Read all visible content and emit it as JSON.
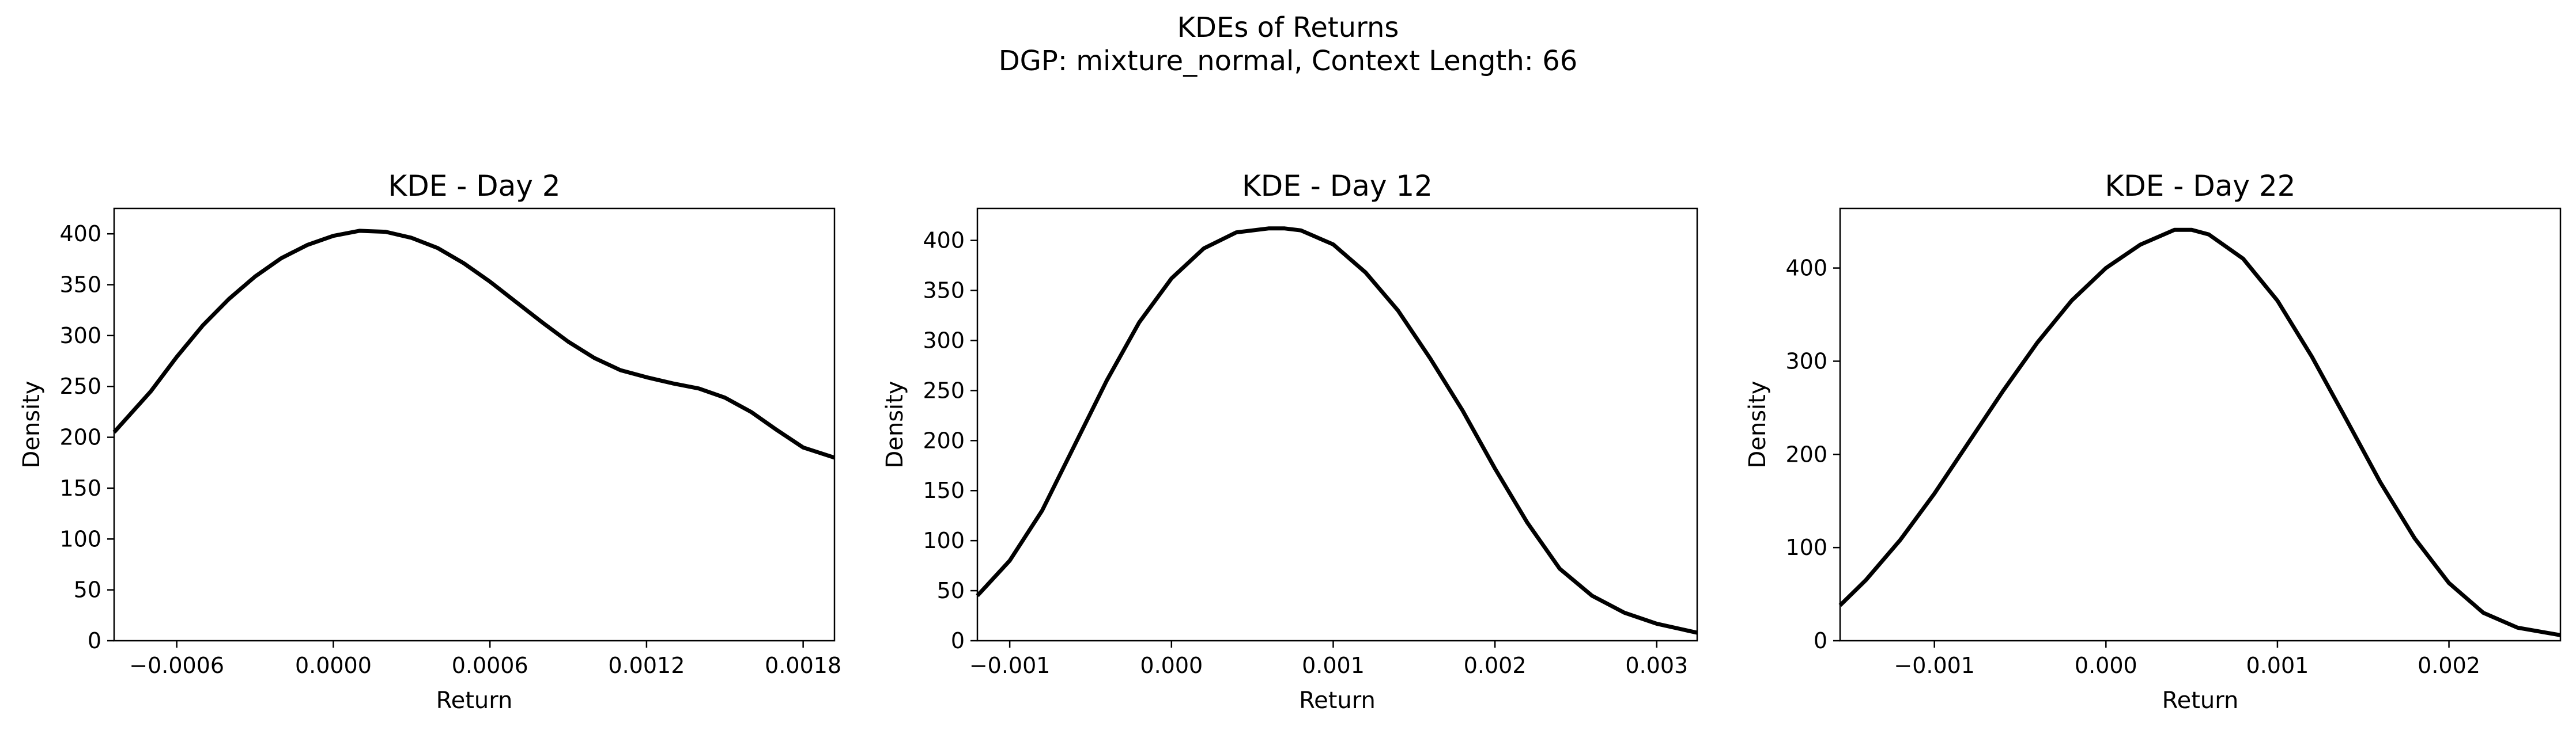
{
  "figure": {
    "title_line1": "KDEs of Returns",
    "title_line2": "DGP: mixture_normal, Context Length: 66"
  },
  "chart_data": [
    {
      "type": "line",
      "title": "KDE - Day 2",
      "xlabel": "Return",
      "ylabel": "Density",
      "xlim": [
        -0.00084,
        0.00192
      ],
      "ylim": [
        0,
        425
      ],
      "xticks": [
        -0.0006,
        0.0,
        0.0006,
        0.0012,
        0.0018
      ],
      "xtick_labels": [
        "−0.0006",
        "0.0000",
        "0.0006",
        "0.0012",
        "0.0018"
      ],
      "yticks": [
        0,
        50,
        100,
        150,
        200,
        250,
        300,
        350,
        400
      ],
      "ytick_labels": [
        "0",
        "50",
        "100",
        "150",
        "200",
        "250",
        "300",
        "350",
        "400"
      ],
      "grid": false,
      "line_color": "#000000",
      "x": [
        -0.00084,
        -0.0007,
        -0.0006,
        -0.0005,
        -0.0004,
        -0.0003,
        -0.0002,
        -0.0001,
        0.0,
        0.0001,
        0.0002,
        0.0003,
        0.0004,
        0.0005,
        0.0006,
        0.0007,
        0.0008,
        0.0009,
        0.001,
        0.0011,
        0.0012,
        0.0013,
        0.0014,
        0.0015,
        0.0016,
        0.0017,
        0.0018,
        0.00192
      ],
      "y": [
        205,
        245,
        279,
        310,
        336,
        358,
        376,
        389,
        398,
        403,
        402,
        396,
        386,
        371,
        353,
        333,
        313,
        294,
        278,
        266,
        259,
        253,
        248,
        239,
        225,
        207,
        190,
        180
      ]
    },
    {
      "type": "line",
      "title": "KDE - Day 12",
      "xlabel": "Return",
      "ylabel": "Density",
      "xlim": [
        -0.0012,
        0.00325
      ],
      "ylim": [
        0,
        432
      ],
      "xticks": [
        -0.001,
        0.0,
        0.001,
        0.002,
        0.003
      ],
      "xtick_labels": [
        "−0.001",
        "0.000",
        "0.001",
        "0.002",
        "0.003"
      ],
      "yticks": [
        0,
        50,
        100,
        150,
        200,
        250,
        300,
        350,
        400
      ],
      "ytick_labels": [
        "0",
        "50",
        "100",
        "150",
        "200",
        "250",
        "300",
        "350",
        "400"
      ],
      "grid": false,
      "line_color": "#000000",
      "x": [
        -0.0012,
        -0.001,
        -0.0008,
        -0.0006,
        -0.0004,
        -0.0002,
        0.0,
        0.0002,
        0.0004,
        0.0006,
        0.0007,
        0.0008,
        0.001,
        0.0012,
        0.0014,
        0.0016,
        0.0018,
        0.002,
        0.0022,
        0.0024,
        0.0026,
        0.0028,
        0.003,
        0.00325
      ],
      "y": [
        45,
        80,
        130,
        195,
        260,
        318,
        362,
        392,
        408,
        412,
        412,
        410,
        396,
        368,
        330,
        282,
        230,
        172,
        118,
        72,
        45,
        28,
        17,
        8
      ]
    },
    {
      "type": "line",
      "title": "KDE - Day 22",
      "xlabel": "Return",
      "ylabel": "Density",
      "xlim": [
        -0.00155,
        0.00265
      ],
      "ylim": [
        0,
        464
      ],
      "xticks": [
        -0.001,
        0.0,
        0.001,
        0.002
      ],
      "xtick_labels": [
        "−0.001",
        "0.000",
        "0.001",
        "0.002"
      ],
      "yticks": [
        0,
        100,
        200,
        300,
        400
      ],
      "ytick_labels": [
        "0",
        "100",
        "200",
        "300",
        "400"
      ],
      "grid": false,
      "line_color": "#000000",
      "x": [
        -0.00155,
        -0.0014,
        -0.0012,
        -0.001,
        -0.0008,
        -0.0006,
        -0.0004,
        -0.0002,
        0.0,
        0.0002,
        0.0004,
        0.0005,
        0.0006,
        0.0008,
        0.001,
        0.0012,
        0.0014,
        0.0016,
        0.0018,
        0.002,
        0.0022,
        0.0024,
        0.00265
      ],
      "y": [
        38,
        65,
        108,
        158,
        213,
        268,
        320,
        365,
        400,
        425,
        441,
        441,
        436,
        410,
        365,
        305,
        238,
        170,
        110,
        62,
        30,
        14,
        6
      ]
    }
  ]
}
